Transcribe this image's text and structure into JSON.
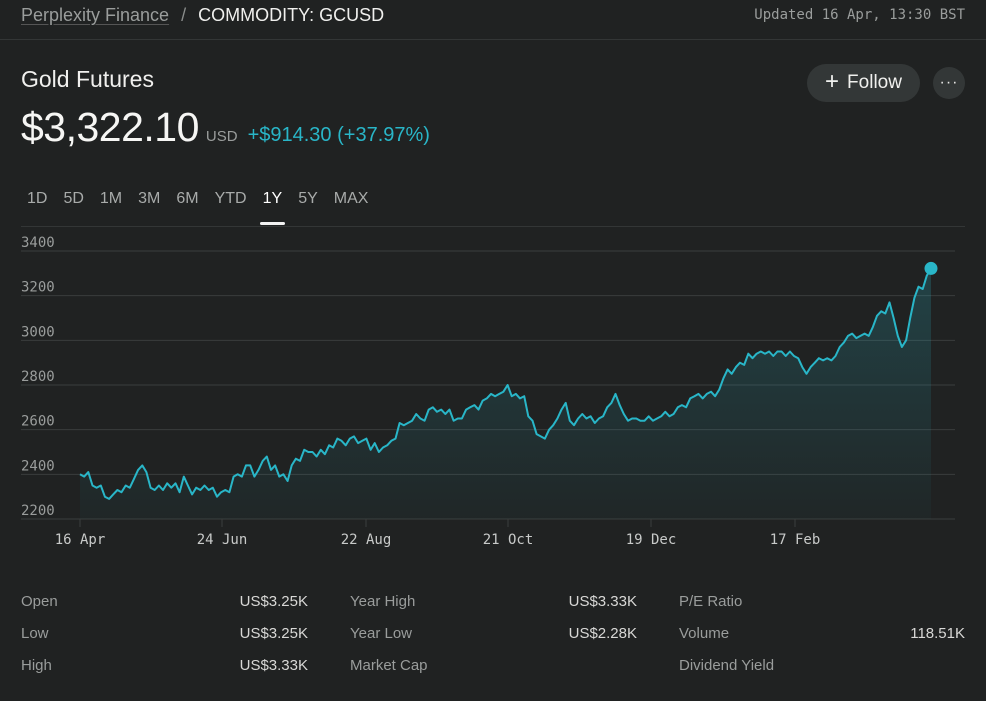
{
  "header": {
    "breadcrumb_root": "Perplexity Finance",
    "breadcrumb_sep": "/",
    "breadcrumb_symbol": "COMMODITY: GCUSD",
    "updated": "Updated 16 Apr, 13:30 BST"
  },
  "quote": {
    "name": "Gold Futures",
    "price": "$3,322.10",
    "currency": "USD",
    "change": "+$914.30 (+37.97%)",
    "follow_label": "Follow",
    "more_label": "···"
  },
  "tabs": [
    "1D",
    "5D",
    "1M",
    "3M",
    "6M",
    "YTD",
    "1Y",
    "5Y",
    "MAX"
  ],
  "active_tab": "1Y",
  "colors": {
    "line": "#29b6c8",
    "background": "#202222",
    "grid": "#3a3d3d"
  },
  "chart_data": {
    "type": "area",
    "y_ticks": [
      "3400",
      "3200",
      "3000",
      "2800",
      "2600",
      "2400",
      "2200"
    ],
    "x_ticks": [
      "16 Apr",
      "24 Jun",
      "22 Aug",
      "21 Oct",
      "19 Dec",
      "17 Feb"
    ],
    "ylim": [
      2200,
      3400
    ],
    "grid": true,
    "series": [
      {
        "values": [
          2400,
          2390,
          2410,
          2350,
          2340,
          2350,
          2300,
          2290,
          2310,
          2330,
          2320,
          2350,
          2340,
          2380,
          2420,
          2440,
          2410,
          2340,
          2330,
          2350,
          2330,
          2360,
          2340,
          2360,
          2320,
          2390,
          2350,
          2310,
          2340,
          2330,
          2350,
          2330,
          2340,
          2300,
          2320,
          2330,
          2320,
          2390,
          2400,
          2390,
          2440,
          2440,
          2390,
          2420,
          2460,
          2480,
          2420,
          2440,
          2390,
          2400,
          2370,
          2440,
          2470,
          2460,
          2510,
          2500,
          2500,
          2480,
          2510,
          2490,
          2530,
          2520,
          2560,
          2550,
          2530,
          2560,
          2570,
          2540,
          2550,
          2560,
          2510,
          2540,
          2500,
          2520,
          2530,
          2550,
          2560,
          2630,
          2620,
          2630,
          2640,
          2670,
          2650,
          2640,
          2690,
          2700,
          2680,
          2690,
          2670,
          2690,
          2640,
          2650,
          2650,
          2690,
          2700,
          2710,
          2690,
          2730,
          2740,
          2760,
          2750,
          2760,
          2770,
          2800,
          2750,
          2760,
          2740,
          2750,
          2660,
          2640,
          2580,
          2570,
          2560,
          2600,
          2620,
          2650,
          2690,
          2720,
          2640,
          2620,
          2650,
          2670,
          2650,
          2660,
          2630,
          2650,
          2660,
          2700,
          2720,
          2760,
          2710,
          2670,
          2640,
          2650,
          2650,
          2640,
          2640,
          2660,
          2640,
          2650,
          2660,
          2680,
          2660,
          2670,
          2700,
          2710,
          2700,
          2740,
          2750,
          2760,
          2740,
          2760,
          2770,
          2750,
          2780,
          2830,
          2870,
          2850,
          2880,
          2900,
          2890,
          2940,
          2920,
          2940,
          2950,
          2940,
          2950,
          2930,
          2950,
          2950,
          2930,
          2950,
          2930,
          2920,
          2880,
          2850,
          2880,
          2900,
          2920,
          2910,
          2920,
          2910,
          2930,
          2970,
          2990,
          3020,
          3030,
          3010,
          3020,
          3030,
          3020,
          3060,
          3110,
          3130,
          3120,
          3170,
          3100,
          3020,
          2970,
          3000,
          3100,
          3190,
          3240,
          3230,
          3290,
          3322
        ]
      }
    ],
    "last_value": 3322.1
  },
  "stats": [
    {
      "label": "Open",
      "value": "US$3.25K"
    },
    {
      "label": "Low",
      "value": "US$3.25K"
    },
    {
      "label": "High",
      "value": "US$3.33K"
    },
    {
      "label": "Year High",
      "value": "US$3.33K"
    },
    {
      "label": "Year Low",
      "value": "US$2.28K"
    },
    {
      "label": "Market Cap",
      "value": ""
    },
    {
      "label": "P/E Ratio",
      "value": ""
    },
    {
      "label": "Volume",
      "value": "118.51K"
    },
    {
      "label": "Dividend Yield",
      "value": ""
    }
  ]
}
